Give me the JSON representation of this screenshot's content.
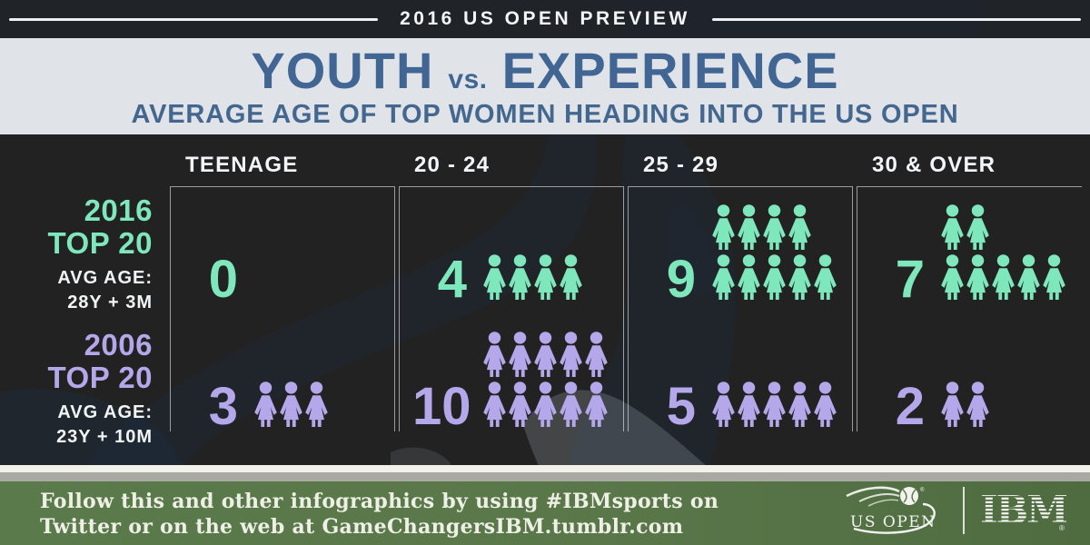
{
  "banner": {
    "title": "2016 US OPEN PREVIEW"
  },
  "header": {
    "title_youth": "YOUTH",
    "title_vs": "vs.",
    "title_experience": "EXPERIENCE",
    "subtitle": "AVERAGE AGE OF TOP WOMEN HEADING INTO THE US OPEN"
  },
  "chart_data": {
    "type": "pictogram",
    "icon": "woman-pictogram",
    "unit": "players",
    "icons_per_row_max": 5,
    "categories": [
      "TEENAGE",
      "20 - 24",
      "25 - 29",
      "30 & OVER"
    ],
    "series": [
      {
        "name": "2016 TOP 20",
        "year": "2016",
        "rank_label": "TOP 20",
        "avg_label": "AVG AGE:",
        "avg_value": "28Y + 3M",
        "color": "#7ee7bc",
        "values": [
          0,
          4,
          9,
          7
        ]
      },
      {
        "name": "2006 TOP 20",
        "year": "2006",
        "rank_label": "TOP 20",
        "avg_label": "AVG AGE:",
        "avg_value": "23Y + 10M",
        "color": "#b5a8ea",
        "values": [
          3,
          10,
          5,
          2
        ]
      }
    ]
  },
  "footer": {
    "line1": "Follow this and other infographics by using #IBMsports on",
    "line2": "Twitter or on the web at GameChangersIBM.tumblr.com",
    "usopen_logo_text": "US OPEN",
    "ibm_logo_text": "IBM",
    "registered_mark": "®"
  },
  "colors": {
    "accent_2016": "#7ee7bc",
    "accent_2006": "#b5a8ea",
    "title_blue": "#426693",
    "court_blue": "#49647e",
    "grass_green": "#5b7a4b"
  }
}
